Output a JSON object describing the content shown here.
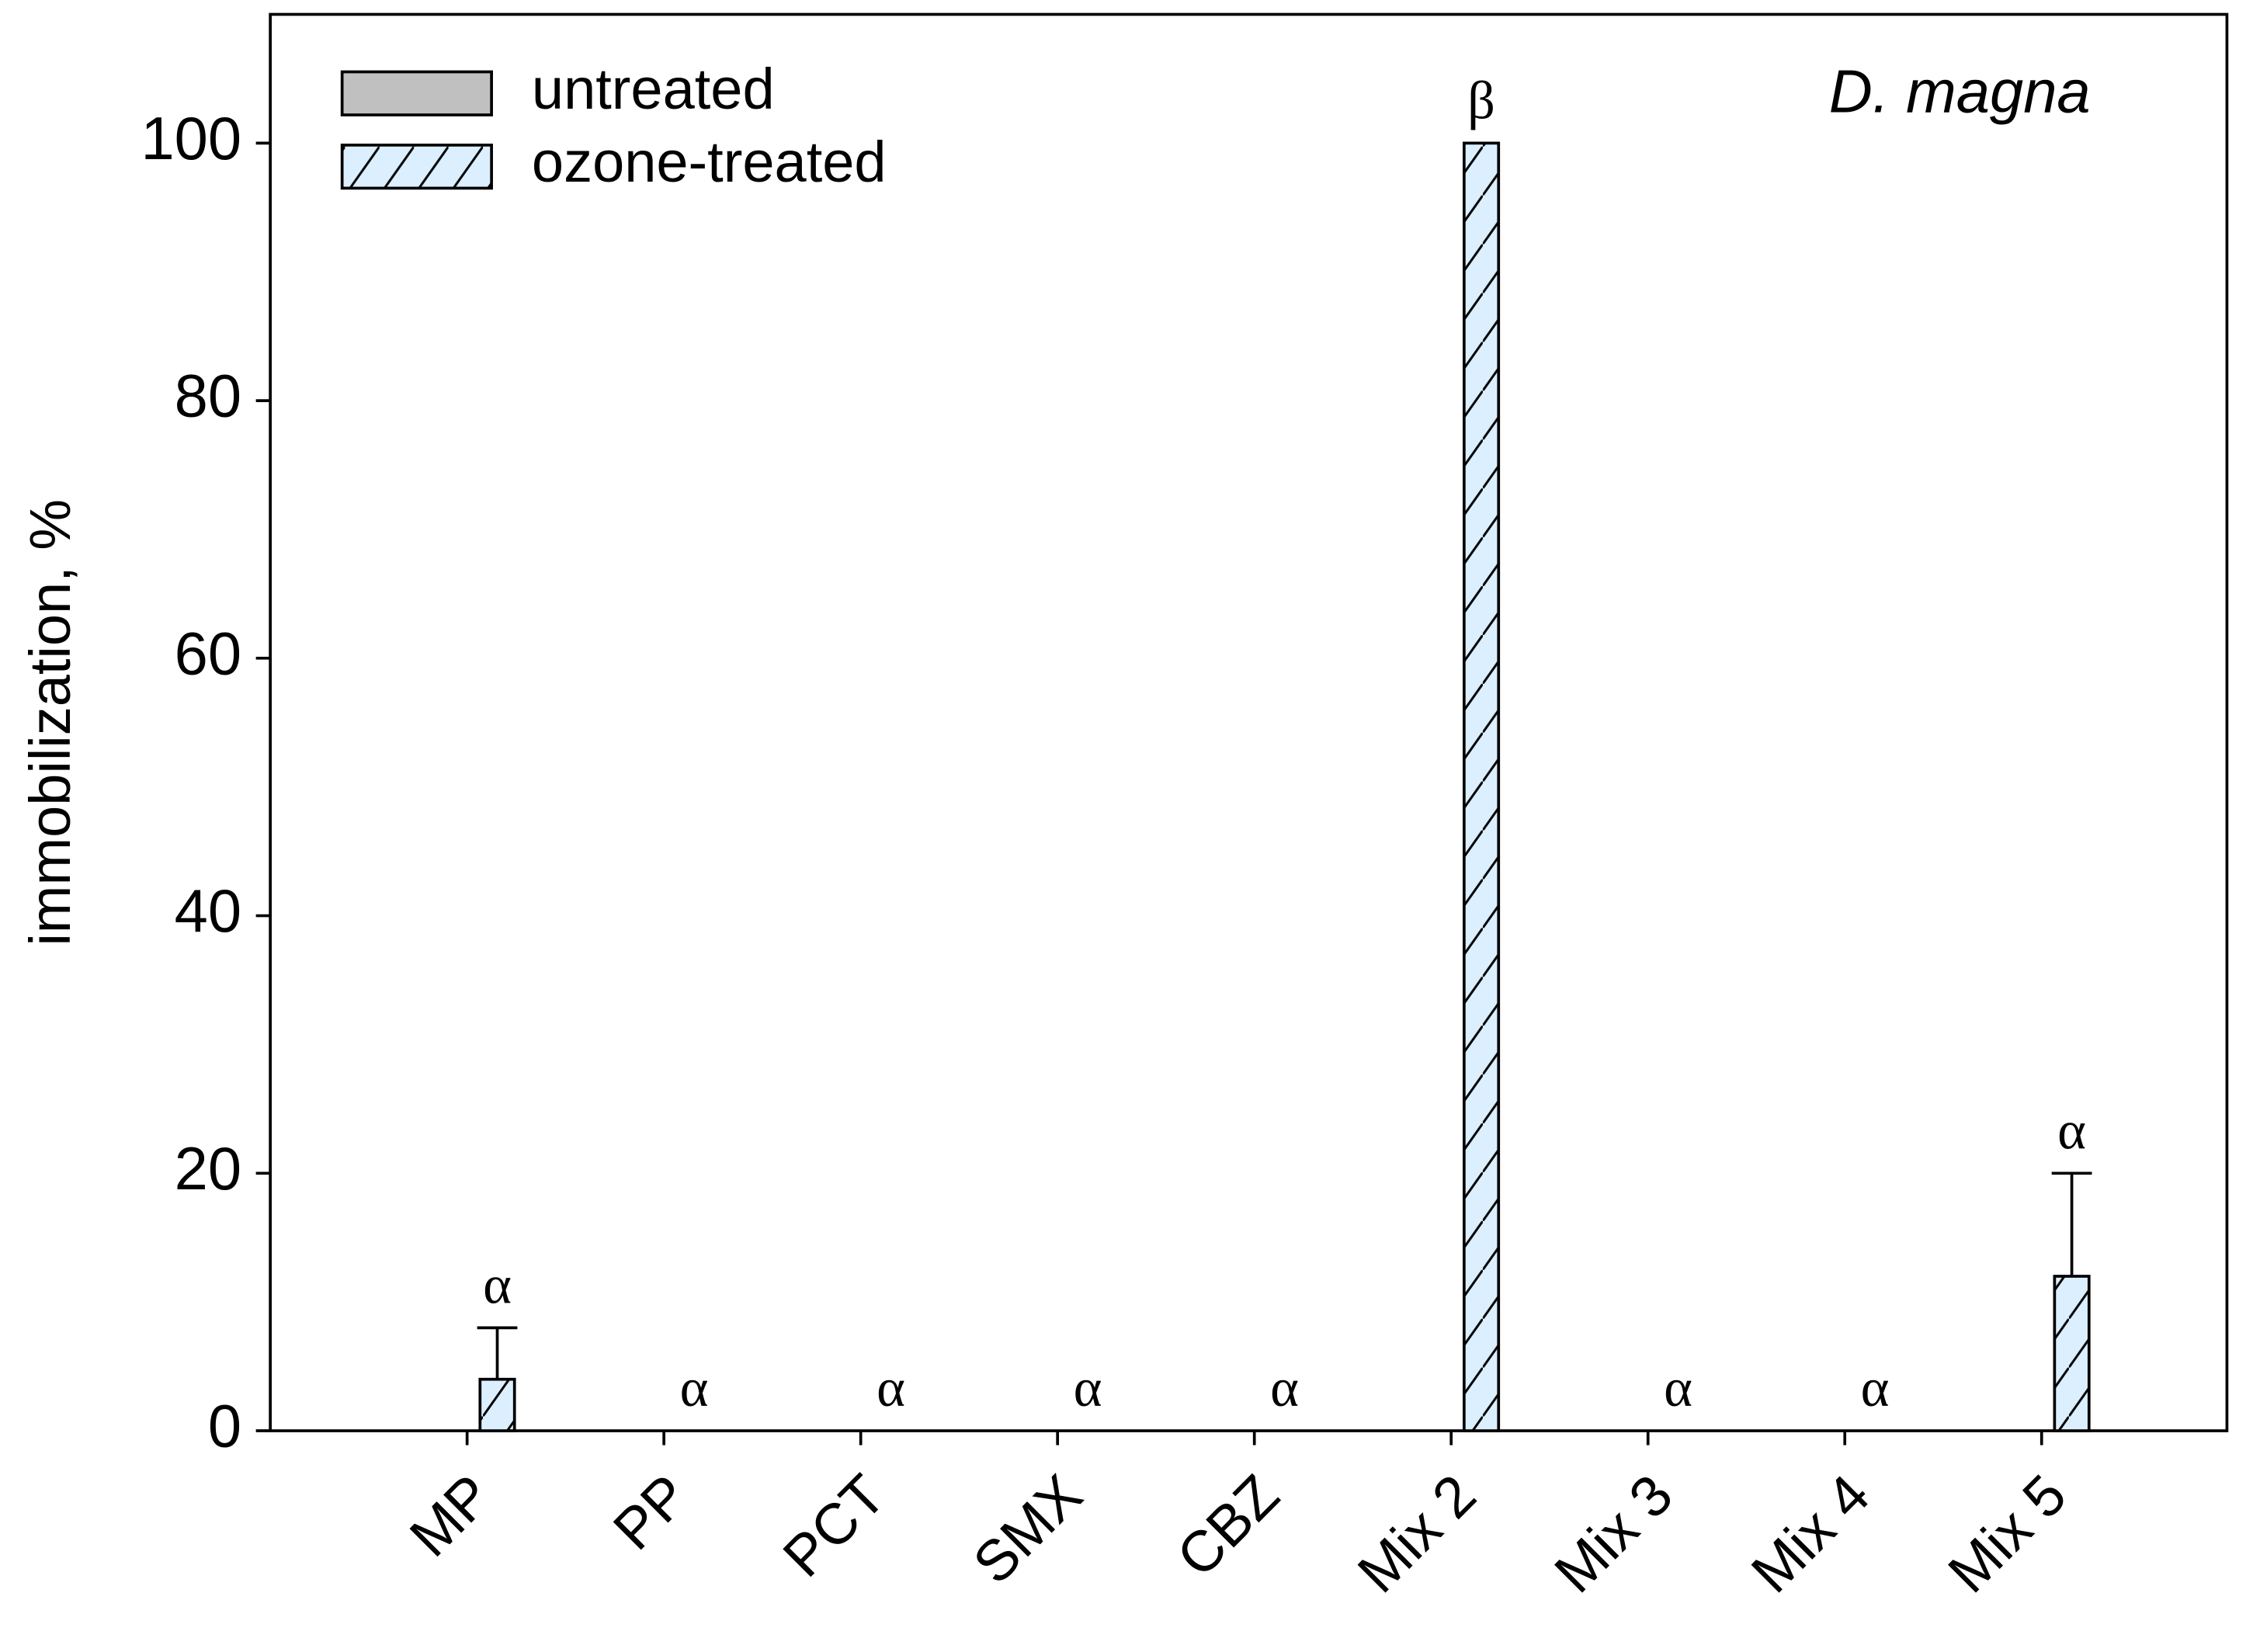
{
  "chart_data": {
    "type": "bar",
    "title": "D. magna",
    "y_label": "immobilization, %",
    "categories": [
      "MP",
      "PP",
      "PCT",
      "SMX",
      "CBZ",
      "Mix 2",
      "Mix 3",
      "Mix 4",
      "Mix 5"
    ],
    "series": [
      {
        "name": "untreated",
        "color": "#c0c0c0",
        "hatch": false,
        "values": [
          0,
          0,
          0,
          0,
          0,
          0,
          0,
          0,
          0
        ]
      },
      {
        "name": "ozone-treated",
        "color": "#dcefff",
        "hatch": true,
        "values": [
          4,
          0,
          0,
          0,
          0,
          100,
          0,
          0,
          12
        ],
        "errors": [
          4,
          0,
          0,
          0,
          0,
          0,
          0,
          0,
          8
        ]
      }
    ],
    "annotations": [
      "α",
      "α",
      "α",
      "α",
      "α",
      "β",
      "α",
      "α",
      "α"
    ],
    "ylim": [
      0,
      110
    ],
    "yticks": [
      0,
      20,
      40,
      60,
      80,
      100
    ],
    "grid": false,
    "legend": "upper left"
  }
}
